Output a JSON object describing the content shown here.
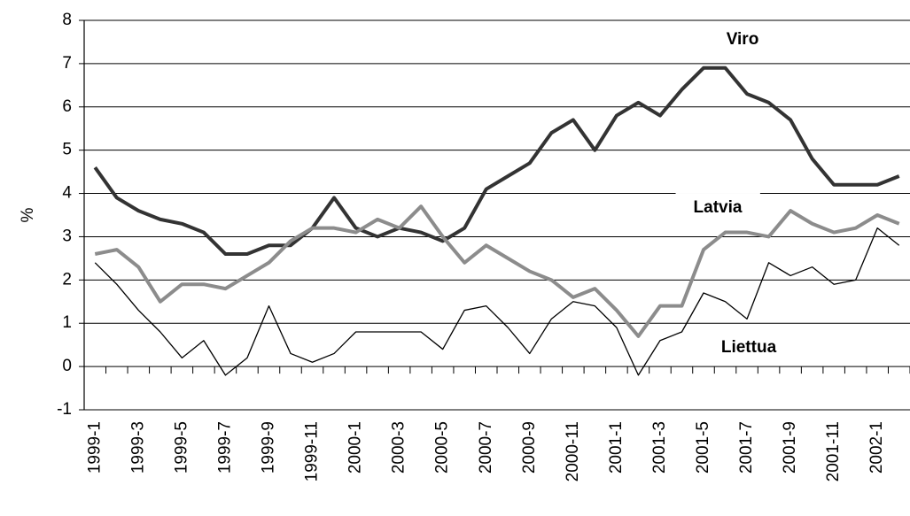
{
  "chart_data": {
    "type": "line",
    "y_label": "%",
    "categories": [
      "1999-1",
      null,
      "1999-3",
      null,
      "1999-5",
      null,
      "1999-7",
      null,
      "1999-9",
      null,
      "1999-11",
      null,
      "2000-1",
      null,
      "2000-3",
      null,
      "2000-5",
      null,
      "2000-7",
      null,
      "2000-9",
      null,
      "2000-11",
      null,
      "2001-1",
      null,
      "2001-3",
      null,
      "2001-5",
      null,
      "2001-7",
      null,
      "2001-9",
      null,
      "2001-11",
      null,
      "2002-1",
      null
    ],
    "series": [
      {
        "name": "Viro",
        "color": "#333333",
        "width": 4,
        "values": [
          4.6,
          3.9,
          3.6,
          3.4,
          3.3,
          3.1,
          2.6,
          2.6,
          2.8,
          2.8,
          3.2,
          3.9,
          3.2,
          3.0,
          3.2,
          3.1,
          2.9,
          3.2,
          4.1,
          4.4,
          4.7,
          5.4,
          5.7,
          5.0,
          5.8,
          6.1,
          5.8,
          6.4,
          6.9,
          6.9,
          6.3,
          6.1,
          5.7,
          4.8,
          4.2,
          4.2,
          4.2,
          4.4
        ]
      },
      {
        "name": "Latvia",
        "color": "#8c8c8c",
        "width": 4,
        "values": [
          2.6,
          2.7,
          2.3,
          1.5,
          1.9,
          1.9,
          1.8,
          2.1,
          2.4,
          2.9,
          3.2,
          3.2,
          3.1,
          3.4,
          3.2,
          3.7,
          3.0,
          2.4,
          2.8,
          2.5,
          2.2,
          2.0,
          1.6,
          1.8,
          1.3,
          0.7,
          1.4,
          1.4,
          2.7,
          3.1,
          3.1,
          3.0,
          3.6,
          3.3,
          3.1,
          3.2,
          3.5,
          3.3
        ]
      },
      {
        "name": "Liettua",
        "color": "#000000",
        "width": 1.3,
        "values": [
          2.4,
          1.9,
          1.3,
          0.8,
          0.2,
          0.6,
          -0.2,
          0.2,
          1.4,
          0.3,
          0.1,
          0.3,
          0.8,
          0.8,
          0.8,
          0.8,
          0.4,
          1.3,
          1.4,
          0.9,
          0.3,
          1.1,
          1.5,
          1.4,
          0.9,
          -0.2,
          0.6,
          0.8,
          1.7,
          1.5,
          1.1,
          2.4,
          2.1,
          2.3,
          1.9,
          2.0,
          3.2,
          2.8
        ]
      }
    ],
    "ylim": [
      -1,
      8
    ],
    "yticks": [
      -1,
      0,
      1,
      2,
      3,
      4,
      5,
      6,
      7,
      8
    ],
    "grid": true
  }
}
